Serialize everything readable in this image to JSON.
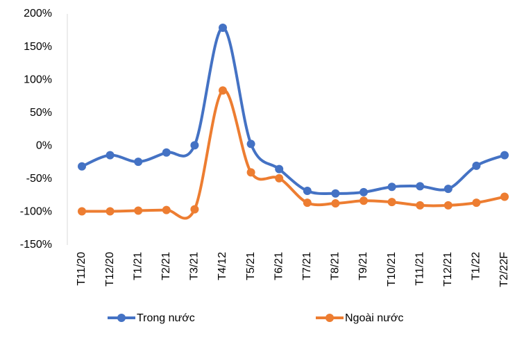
{
  "chart_data": {
    "type": "line",
    "categories": [
      "T11/20",
      "T12/20",
      "T1/21",
      "T2/21",
      "T3/21",
      "T4/12",
      "T5/21",
      "T6/21",
      "T7/21",
      "T8/21",
      "T9/21",
      "T10/21",
      "T11/21",
      "T12/21",
      "T1/22",
      "T2/22F"
    ],
    "series": [
      {
        "name": "Trong nước",
        "color": "#4472c4",
        "values": [
          -31,
          -14,
          -24,
          -10,
          1,
          179,
          3,
          -35,
          -68,
          -72,
          -70,
          -62,
          -61,
          -65,
          -30,
          -14
        ]
      },
      {
        "name": "Ngoài nước",
        "color": "#ed7d31",
        "values": [
          -99,
          -99,
          -98,
          -97,
          -96,
          84,
          -40,
          -49,
          -86,
          -87,
          -83,
          -85,
          -90,
          -90,
          -86,
          -77
        ]
      }
    ],
    "ylim": [
      -150,
      200
    ],
    "yticks": [
      {
        "value": -150,
        "label": "-150%"
      },
      {
        "value": -100,
        "label": "-100%"
      },
      {
        "value": -50,
        "label": "-50%"
      },
      {
        "value": 0,
        "label": "0%"
      },
      {
        "value": 50,
        "label": "50%"
      },
      {
        "value": 100,
        "label": "100%"
      },
      {
        "value": 150,
        "label": "150%"
      },
      {
        "value": 200,
        "label": "200%"
      }
    ],
    "smooth": true,
    "legend": "bottom"
  }
}
